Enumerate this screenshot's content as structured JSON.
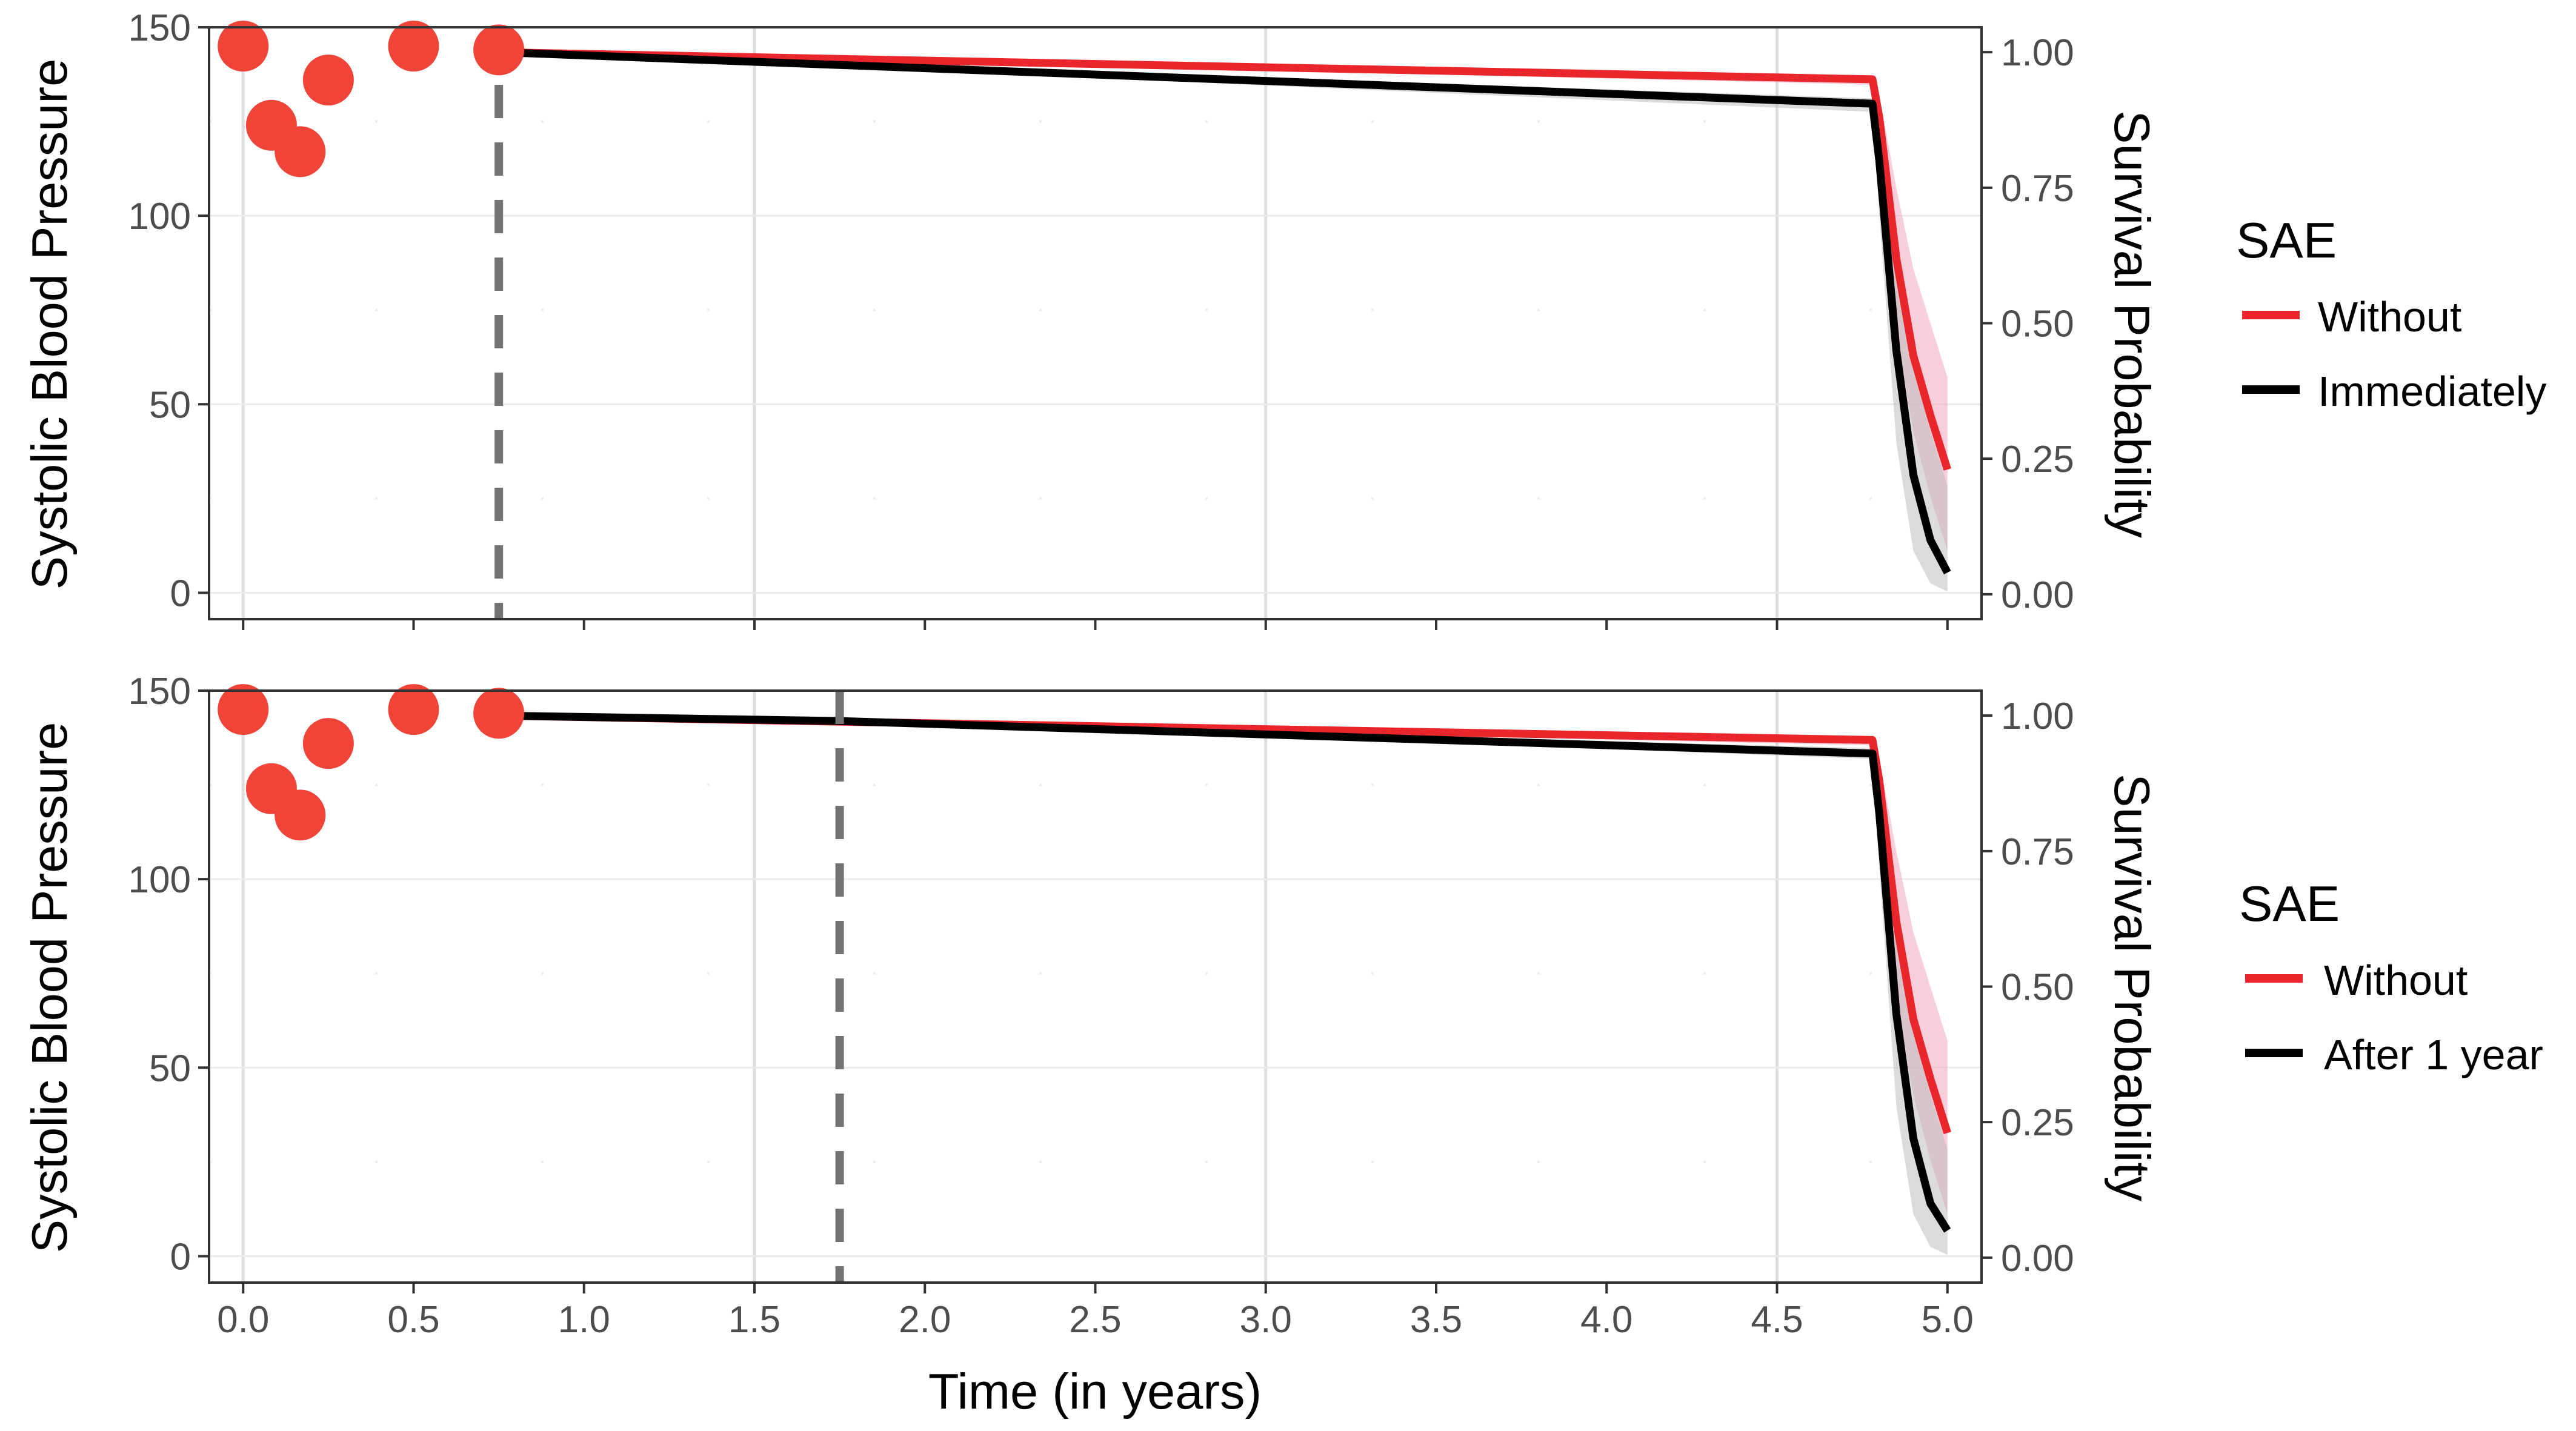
{
  "colors": {
    "without": "#e8262c",
    "with": "#000000",
    "points": "#f04438",
    "band_without": "#f4a6bd",
    "band_with": "#bdbdbd",
    "grid_major": "#dedede",
    "grid_minor": "#ebebeb",
    "dashed_line": "#737373",
    "panel_border": "#333333"
  },
  "chart_data": [
    {
      "type": "line",
      "panel": "top",
      "xlabel": "Time (in years)",
      "ylabel": "Systolic Blood Pressure",
      "y2label": "Survival Probability",
      "xlim": [
        -0.1,
        5.1
      ],
      "ylim": [
        -7,
        150
      ],
      "y2lim": [
        -0.046,
        1.046
      ],
      "x_ticks": [
        "0.0",
        "0.5",
        "1.0",
        "1.5",
        "2.0",
        "2.5",
        "3.0",
        "3.5",
        "4.0",
        "4.5",
        "5.0"
      ],
      "show_x_tick_labels": false,
      "y_ticks": [
        "0",
        "50",
        "100",
        "150"
      ],
      "y2_ticks": [
        "0.00",
        "0.25",
        "0.50",
        "0.75",
        "1.00"
      ],
      "landmark_time": 0.75,
      "legend": {
        "title": "SAE",
        "entries": [
          "Without",
          "Immediately"
        ],
        "position": "right"
      },
      "observed_sbp": {
        "x": [
          0,
          0.083,
          0.167,
          0.25,
          0.5,
          0.75
        ],
        "y": [
          145,
          124,
          117,
          136,
          145,
          144
        ]
      },
      "series": [
        {
          "name": "Without",
          "x": [
            0.75,
            4.78,
            4.8,
            4.85,
            4.9,
            4.95,
            5.0
          ],
          "y": [
            1.0,
            0.95,
            0.88,
            0.62,
            0.44,
            0.33,
            0.23
          ],
          "lower": [
            1.0,
            0.94,
            0.84,
            0.48,
            0.3,
            0.18,
            0.08
          ],
          "upper": [
            1.0,
            0.955,
            0.92,
            0.75,
            0.6,
            0.5,
            0.4
          ]
        },
        {
          "name": "Immediately",
          "x": [
            0.75,
            4.78,
            4.8,
            4.85,
            4.9,
            4.95,
            5.0
          ],
          "y": [
            1.0,
            0.905,
            0.8,
            0.45,
            0.22,
            0.1,
            0.04
          ],
          "lower": [
            1.0,
            0.89,
            0.7,
            0.28,
            0.08,
            0.02,
            0.005
          ],
          "upper": [
            1.0,
            0.915,
            0.86,
            0.6,
            0.42,
            0.3,
            0.2
          ]
        }
      ]
    },
    {
      "type": "line",
      "panel": "bottom",
      "xlabel": "Time (in years)",
      "ylabel": "Systolic Blood Pressure",
      "y2label": "Survival Probability",
      "xlim": [
        -0.1,
        5.1
      ],
      "ylim": [
        -7,
        150
      ],
      "y2lim": [
        -0.046,
        1.046
      ],
      "x_ticks": [
        "0.0",
        "0.5",
        "1.0",
        "1.5",
        "2.0",
        "2.5",
        "3.0",
        "3.5",
        "4.0",
        "4.5",
        "5.0"
      ],
      "show_x_tick_labels": true,
      "y_ticks": [
        "0",
        "50",
        "100",
        "150"
      ],
      "y2_ticks": [
        "0.00",
        "0.25",
        "0.50",
        "0.75",
        "1.00"
      ],
      "landmark_time": 1.75,
      "legend": {
        "title": "SAE",
        "entries": [
          "Without",
          "After 1 year"
        ],
        "position": "right"
      },
      "observed_sbp": {
        "x": [
          0,
          0.083,
          0.167,
          0.25,
          0.5,
          0.75
        ],
        "y": [
          145,
          124,
          117,
          136,
          145,
          144
        ]
      },
      "series": [
        {
          "name": "Without",
          "x": [
            0.75,
            4.78,
            4.8,
            4.85,
            4.9,
            4.95,
            5.0
          ],
          "y": [
            1.0,
            0.955,
            0.88,
            0.62,
            0.44,
            0.33,
            0.23
          ],
          "lower": [
            1.0,
            0.945,
            0.84,
            0.48,
            0.3,
            0.18,
            0.08
          ],
          "upper": [
            1.0,
            0.96,
            0.92,
            0.75,
            0.6,
            0.5,
            0.4
          ]
        },
        {
          "name": "After 1 year",
          "x": [
            0.75,
            1.75,
            4.78,
            4.8,
            4.85,
            4.9,
            4.95,
            5.0
          ],
          "y": [
            1.0,
            0.99,
            0.93,
            0.82,
            0.45,
            0.22,
            0.1,
            0.05
          ],
          "lower": [
            1.0,
            0.99,
            0.92,
            0.72,
            0.28,
            0.08,
            0.02,
            0.005
          ],
          "upper": [
            1.0,
            0.99,
            0.94,
            0.88,
            0.6,
            0.42,
            0.3,
            0.2
          ]
        }
      ]
    }
  ]
}
